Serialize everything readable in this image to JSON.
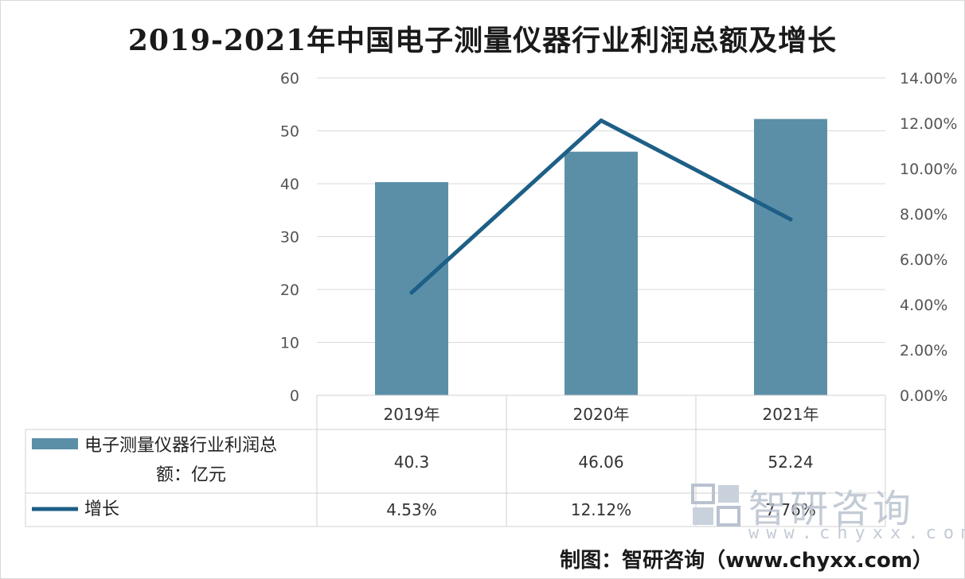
{
  "chart_data": {
    "type": "bar",
    "title": "2019-2021年中国电子测量仪器行业利润总额及增长",
    "categories": [
      "2019年",
      "2020年",
      "2021年"
    ],
    "series": [
      {
        "name": "电子测量仪器行业利润总额：亿元",
        "type": "bar",
        "axis": "left",
        "values": [
          40.3,
          46.06,
          52.24
        ],
        "labels": [
          "40.3",
          "46.06",
          "52.24"
        ],
        "color": "#5b8fa8"
      },
      {
        "name": "增长",
        "type": "line",
        "axis": "right",
        "values": [
          4.53,
          12.12,
          7.76
        ],
        "labels": [
          "4.53%",
          "12.12%",
          "7.76%"
        ],
        "color": "#1d5f86"
      }
    ],
    "y_left": {
      "min": 0,
      "max": 60,
      "ticks": [
        "0",
        "10",
        "20",
        "30",
        "40",
        "50",
        "60"
      ]
    },
    "y_right": {
      "min": 0,
      "max": 14,
      "ticks": [
        "0.00%",
        "2.00%",
        "4.00%",
        "6.00%",
        "8.00%",
        "10.00%",
        "12.00%",
        "14.00%"
      ]
    },
    "grid": true,
    "legend": "data-table-bottom"
  },
  "legend": {
    "bar_label_line1": "电子测量仪器行业利润总",
    "bar_label_line2": "额：亿元",
    "line_label": "增长"
  },
  "watermark": {
    "name": "智研咨询",
    "url": "www.chyxx.com"
  },
  "source_note": "制图：智研咨询（www.chyxx.com）"
}
